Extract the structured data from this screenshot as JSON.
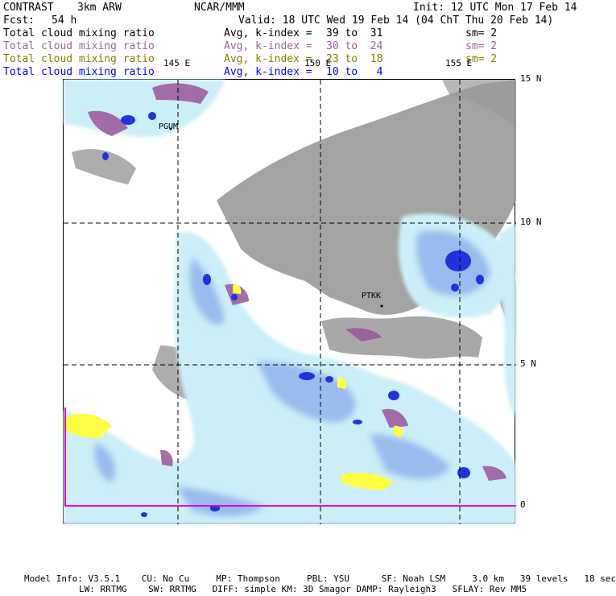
{
  "header": {
    "model": "CONTRAST",
    "model_detail": "3km ARW",
    "center": "NCAR/MMM",
    "init_label": "Init: 12 UTC Mon 17 Feb 14",
    "fcst_label": "Fcst:",
    "fcst_value": "54 h",
    "valid_label": "Valid: 18 UTC Wed 19 Feb 14 (04 ChT Thu 20 Feb 14)"
  },
  "fields": [
    {
      "name": "Total cloud mixing ratio",
      "avg": "Avg, k-index =",
      "range": "39 to  31",
      "sm": "sm= 2",
      "color": "#000000"
    },
    {
      "name": "Total cloud mixing ratio",
      "avg": "Avg, k-index =",
      "range": "30 to  24",
      "sm": "sm= 2",
      "color": "#a060a0"
    },
    {
      "name": "Total cloud mixing ratio",
      "avg": "Avg, k-index =",
      "range": "23 to  18",
      "sm": "sm= 2",
      "color": "#808000"
    },
    {
      "name": "Total cloud mixing ratio",
      "avg": "Avg, k-index =",
      "range": "10 to   4",
      "sm": "",
      "color": "#0000ff"
    }
  ],
  "map": {
    "lon_labels": [
      "145 E",
      "150 E",
      "155 E"
    ],
    "lat_labels": [
      "15 N",
      "10 N",
      "5 N",
      "0"
    ],
    "stations": [
      "PGUM",
      "PTKK"
    ],
    "colors": {
      "land": "#999999",
      "cloud_light": "#cceef8",
      "cloud_mid": "#99bbee",
      "cloud_dark": "#2233dd",
      "purple": "#995599",
      "yellow": "#ffff44",
      "magenta": "#dd00dd"
    }
  },
  "footer": {
    "line1": "Model Info: V3.5.1    CU: No Cu     MP: Thompson     PBL: YSU      SF: Noah LSM     3.0 km   39 levels   18 sec",
    "line2": "LW: RRTMG    SW: RRTMG   DIFF: simple KM: 3D Smagor DAMP: Rayleigh3   SFLAY: Rev MM5"
  }
}
